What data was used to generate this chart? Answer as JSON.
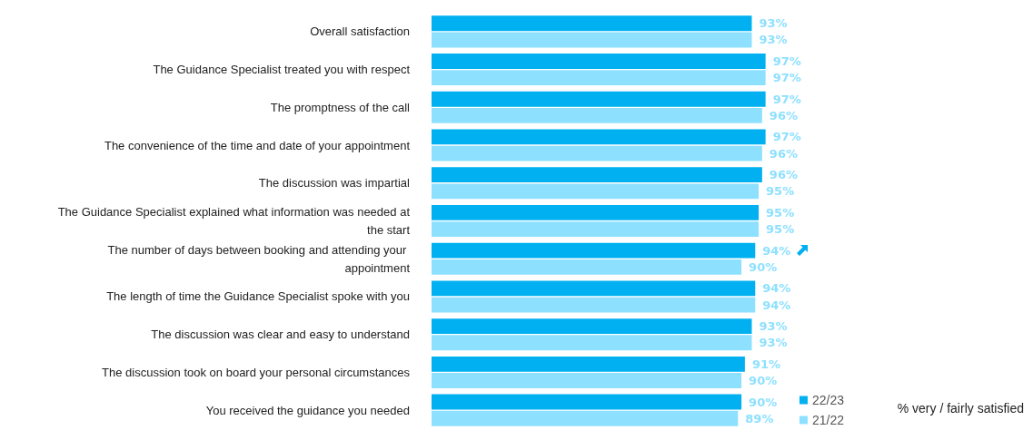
{
  "chart_data": {
    "type": "bar",
    "orientation": "horizontal",
    "categories": [
      "Overall satisfaction",
      "The Guidance Specialist treated you with respect",
      "The promptness of the call",
      "The convenience of the time and date of your appointment",
      "The discussion was impartial",
      "The Guidance Specialist explained what information was needed at the start",
      "The number of days between booking and attending your appointment",
      "The length of time the Guidance Specialist spoke with you",
      "The discussion was clear and easy to understand",
      "The discussion took on board your personal circumstances",
      "You received the guidance you needed"
    ],
    "series": [
      {
        "name": "22/23",
        "color": "#00b0f0",
        "values": [
          93,
          97,
          97,
          97,
          96,
          95,
          94,
          94,
          93,
          91,
          90
        ],
        "value_labels": [
          "93%",
          "97%",
          "97%",
          "97%",
          "96%",
          "95%",
          "94%",
          "94%",
          "93%",
          "91%",
          "90%"
        ]
      },
      {
        "name": "21/22",
        "color": "#8ee0ff",
        "values": [
          93,
          97,
          96,
          96,
          95,
          95,
          90,
          94,
          93,
          90,
          89
        ],
        "value_labels": [
          "93%",
          "97%",
          "96%",
          "96%",
          "95%",
          "95%",
          "90%",
          "94%",
          "93%",
          "90%",
          "89%"
        ]
      }
    ],
    "annotations": [
      "% very / fairly satisfied"
    ],
    "legend": "bottom right",
    "grid": false
  }
}
